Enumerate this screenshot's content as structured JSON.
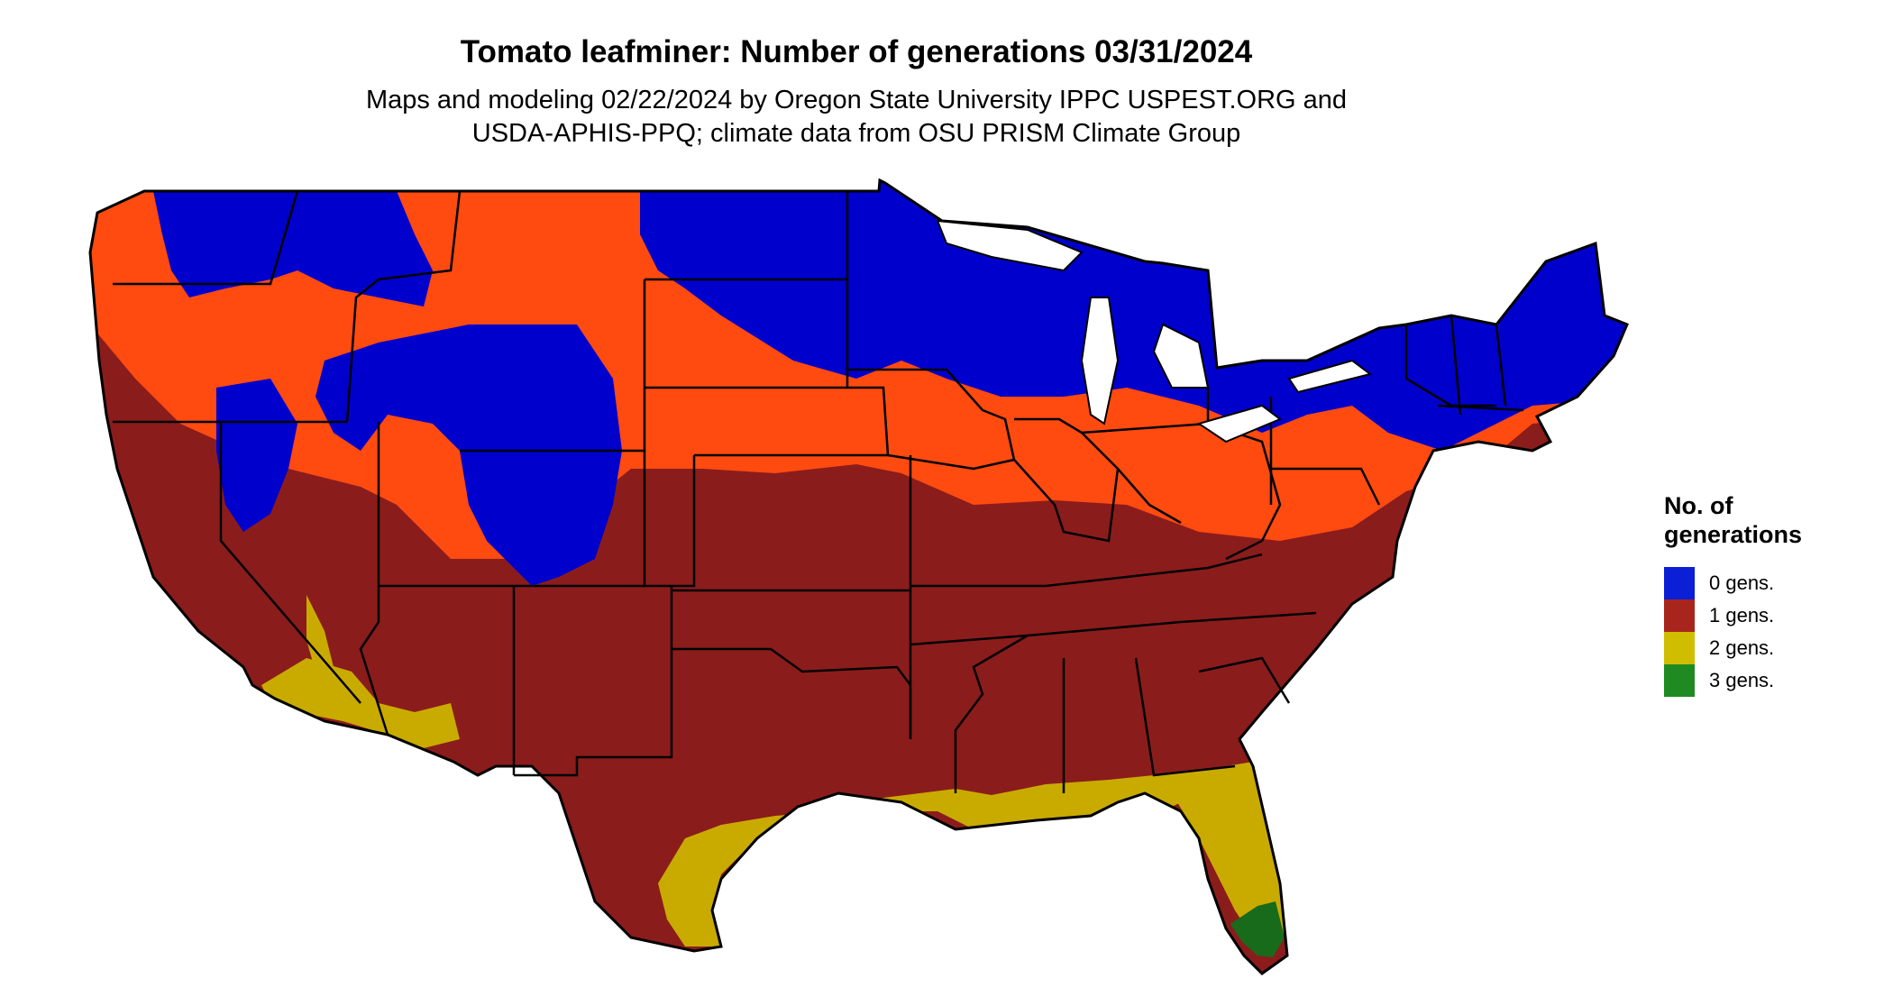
{
  "title": "Tomato leafminer: Number of generations 03/31/2024",
  "subtitle_line1": "Maps and modeling 02/22/2024 by Oregon State University IPPC USPEST.ORG and",
  "subtitle_line2": "USDA-APHIS-PPQ; climate data from OSU PRISM Climate Group",
  "legend": {
    "title_line1": "No. of",
    "title_line2": "generations",
    "items": [
      {
        "label": "0 gens.",
        "color": "#0a1fd6"
      },
      {
        "label": "1 gens.",
        "color": "#a8251d"
      },
      {
        "label": "2 gens.",
        "color": "#d1bd00"
      },
      {
        "label": "3 gens.",
        "color": "#1f8a22"
      }
    ]
  },
  "map_colors": {
    "zero": "#0000cc",
    "one_cool": "#ff4a10",
    "one_warm": "#8b1c1c",
    "two": "#c9ab00",
    "three": "#176b1a"
  }
}
